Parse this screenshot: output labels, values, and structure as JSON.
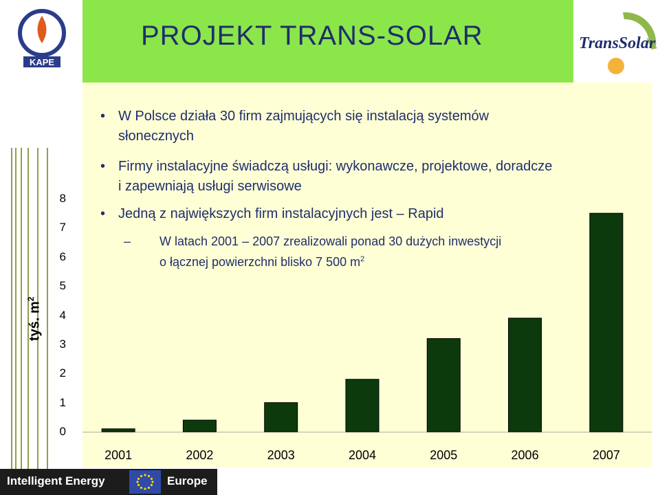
{
  "header": {
    "title": "PROJEKT  TRANS-SOLAR",
    "left_logo_text": "KAPE",
    "right_logo_text": "TransSolar"
  },
  "bullets": [
    {
      "text_line1": "W Polsce działa 30 firm zajmujących się instalacją systemów",
      "text_line2": "słonecznych"
    },
    {
      "text_line1": "Firmy instalacyjne świadczą usługi: wykonawcze, projektowe, doradcze",
      "text_line2": "i zapewniają usługi serwisowe"
    },
    {
      "text_line1": "Jedną z największych firm instalacyjnych jest – Rapid",
      "text_line2": ""
    }
  ],
  "subbullet": {
    "dash": "–",
    "text_line1": "W latach 2001 – 2007 zrealizowali ponad 30 dużych inwestycji",
    "text_line2": "o łącznej powierzchni blisko 7 500 m",
    "superscript": "2"
  },
  "footer": {
    "left_text": "Intelligent Energy",
    "right_text": "Europe"
  },
  "chart_data": {
    "type": "bar",
    "categories": [
      "2001",
      "2002",
      "2003",
      "2004",
      "2005",
      "2006",
      "2007"
    ],
    "values": [
      0.1,
      0.4,
      1.0,
      1.8,
      3.2,
      3.9,
      7.5
    ],
    "ylabel": "tyś. m",
    "ylabel_sup": "2",
    "yticks": [
      "0",
      "1",
      "2",
      "3",
      "4",
      "5",
      "6",
      "7",
      "8"
    ],
    "ylim": [
      0,
      8
    ],
    "bar_color": "#0d3a0d",
    "grid": false
  },
  "colors": {
    "header_green": "#8be64a",
    "content_bg": "#ffffd6",
    "text_navy": "#1f2e6b"
  }
}
